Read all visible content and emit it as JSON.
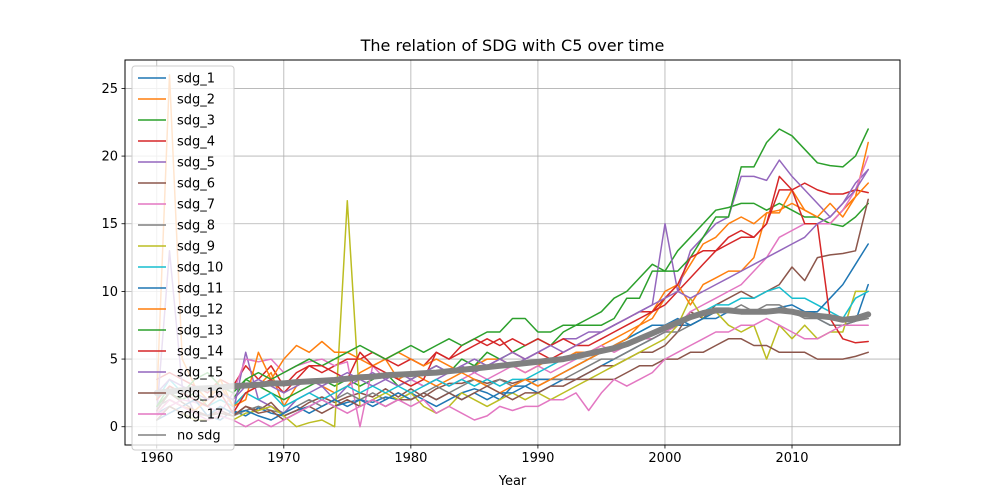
{
  "chart_data": {
    "type": "line",
    "title": "The relation of SDG with C5 over time",
    "xlabel": "Year",
    "ylabel": "",
    "xlim": [
      1957.5,
      2018.5
    ],
    "ylim": [
      -1.35,
      27.1
    ],
    "x_ticks": [
      1960,
      1970,
      1980,
      1990,
      2000,
      2010
    ],
    "y_ticks": [
      0,
      5,
      10,
      15,
      20,
      25
    ],
    "grid": true,
    "legend_position": "upper-left",
    "x": [
      1960,
      1961,
      1962,
      1963,
      1964,
      1965,
      1966,
      1967,
      1968,
      1969,
      1970,
      1971,
      1972,
      1973,
      1974,
      1975,
      1976,
      1977,
      1978,
      1979,
      1980,
      1981,
      1982,
      1983,
      1984,
      1985,
      1986,
      1987,
      1988,
      1989,
      1990,
      1991,
      1992,
      1993,
      1994,
      1995,
      1996,
      1997,
      1998,
      1999,
      2000,
      2001,
      2002,
      2003,
      2004,
      2005,
      2006,
      2007,
      2008,
      2009,
      2010,
      2011,
      2012,
      2013,
      2014,
      2015,
      2016
    ],
    "series": [
      {
        "name": "sdg_1",
        "color": "#1f77b4",
        "values": [
          1.0,
          1.5,
          1.0,
          1.2,
          0.8,
          0.5,
          1.2,
          0.8,
          1.4,
          1.0,
          0.8,
          1.2,
          1.5,
          2.0,
          1.5,
          1.8,
          2.0,
          1.8,
          2.2,
          2.0,
          2.5,
          2.0,
          1.5,
          2.0,
          2.5,
          2.8,
          2.5,
          2.0,
          3.0,
          3.0,
          2.5,
          3.0,
          3.5,
          3.5,
          4.0,
          4.5,
          5.0,
          5.5,
          6.0,
          6.5,
          7.0,
          7.5,
          7.5,
          8.0,
          8.0,
          8.5,
          8.5,
          8.5,
          8.5,
          8.8,
          9.0,
          8.5,
          8.0,
          7.5,
          7.5,
          7.8,
          10.5
        ]
      },
      {
        "name": "sdg_2",
        "color": "#ff7f0e",
        "values": [
          2.0,
          26.0,
          5.0,
          3.0,
          2.0,
          3.0,
          1.5,
          2.5,
          3.0,
          4.0,
          1.5,
          3.0,
          3.5,
          3.0,
          2.5,
          3.0,
          4.0,
          4.5,
          5.0,
          3.5,
          4.0,
          3.5,
          3.0,
          3.5,
          4.0,
          4.5,
          5.0,
          5.0,
          4.5,
          4.0,
          4.5,
          5.0,
          5.0,
          5.5,
          5.5,
          6.0,
          6.5,
          7.0,
          7.5,
          8.0,
          9.5,
          10.5,
          12.0,
          13.5,
          14.0,
          15.0,
          15.5,
          15.0,
          15.8,
          16.0,
          16.5,
          16.0,
          15.5,
          15.0,
          16.0,
          17.0,
          21.0
        ]
      },
      {
        "name": "sdg_3",
        "color": "#2ca02c",
        "values": [
          1.5,
          2.5,
          2.0,
          2.5,
          1.5,
          2.5,
          2.0,
          3.5,
          3.0,
          2.5,
          2.0,
          2.5,
          3.0,
          3.5,
          3.0,
          3.5,
          3.0,
          3.5,
          4.0,
          3.0,
          3.5,
          4.0,
          4.5,
          4.0,
          5.0,
          4.5,
          5.5,
          5.0,
          5.5,
          6.0,
          6.5,
          6.0,
          7.0,
          7.5,
          8.0,
          8.5,
          9.5,
          10.0,
          11.0,
          12.0,
          11.5,
          13.0,
          14.0,
          15.0,
          16.0,
          16.2,
          16.5,
          16.5,
          16.0,
          16.5,
          16.0,
          15.5,
          15.5,
          15.0,
          14.8,
          15.5,
          16.5
        ]
      },
      {
        "name": "sdg_4",
        "color": "#d62728",
        "values": [
          3.5,
          4.0,
          3.5,
          3.0,
          2.5,
          3.5,
          3.0,
          4.5,
          3.5,
          4.5,
          3.0,
          4.0,
          4.5,
          4.0,
          4.5,
          5.0,
          5.0,
          5.5,
          5.0,
          4.5,
          5.0,
          4.5,
          5.5,
          5.0,
          6.0,
          6.5,
          6.0,
          6.5,
          5.5,
          5.0,
          5.5,
          5.0,
          5.5,
          6.0,
          6.5,
          7.0,
          7.5,
          8.0,
          8.5,
          8.5,
          9.0,
          10.0,
          11.0,
          12.0,
          13.0,
          13.5,
          14.0,
          14.0,
          15.0,
          18.5,
          17.5,
          18.0,
          17.5,
          17.2,
          17.2,
          17.5,
          17.3
        ]
      },
      {
        "name": "sdg_5",
        "color": "#9467bd",
        "values": [
          1.0,
          13.0,
          3.0,
          1.0,
          0.8,
          1.5,
          1.0,
          5.5,
          2.0,
          1.5,
          1.0,
          2.0,
          2.5,
          3.0,
          2.0,
          3.0,
          3.5,
          3.0,
          3.5,
          3.0,
          3.5,
          3.0,
          3.5,
          4.0,
          4.5,
          4.0,
          4.5,
          5.0,
          4.5,
          5.0,
          5.5,
          6.0,
          6.5,
          6.5,
          7.0,
          7.0,
          7.5,
          8.0,
          8.5,
          9.0,
          15.0,
          10.0,
          13.0,
          14.0,
          15.0,
          15.5,
          18.5,
          18.5,
          18.2,
          19.7,
          18.5,
          17.5,
          16.5,
          15.5,
          16.5,
          18.0,
          19.0
        ]
      },
      {
        "name": "sdg_6",
        "color": "#8c564b",
        "values": [
          1.2,
          2.5,
          1.8,
          1.2,
          0.8,
          1.2,
          0.8,
          1.5,
          1.2,
          1.8,
          0.8,
          1.2,
          1.8,
          2.2,
          1.8,
          2.2,
          2.5,
          2.2,
          2.8,
          2.2,
          2.8,
          2.2,
          2.8,
          3.2,
          3.2,
          3.5,
          3.2,
          3.5,
          3.2,
          3.5,
          3.5,
          3.5,
          3.5,
          3.5,
          4.0,
          4.5,
          4.5,
          5.0,
          5.5,
          5.5,
          6.0,
          7.0,
          8.5,
          8.0,
          9.0,
          9.5,
          10.0,
          9.5,
          10.0,
          10.5,
          11.8,
          10.8,
          12.5,
          12.7,
          12.8,
          13.0,
          16.8
        ]
      },
      {
        "name": "sdg_7",
        "color": "#e377c2",
        "values": [
          0.8,
          1.5,
          2.0,
          1.8,
          1.5,
          1.0,
          2.5,
          5.0,
          4.8,
          5.0,
          4.0,
          4.5,
          4.8,
          5.0,
          4.5,
          4.8,
          0.0,
          4.5,
          3.5,
          4.0,
          3.5,
          3.0,
          3.5,
          3.0,
          3.5,
          4.0,
          3.5,
          4.0,
          4.5,
          4.0,
          4.5,
          4.0,
          4.5,
          5.0,
          5.5,
          6.0,
          5.5,
          6.0,
          6.5,
          6.5,
          7.0,
          7.5,
          8.5,
          9.0,
          9.5,
          10.0,
          10.5,
          11.5,
          12.5,
          14.0,
          14.5,
          15.0,
          15.0,
          15.0,
          16.0,
          17.5,
          20.0
        ]
      },
      {
        "name": "sdg_8",
        "color": "#7f7f7f",
        "values": [
          1.5,
          2.0,
          1.5,
          1.0,
          0.8,
          1.0,
          0.8,
          1.2,
          1.5,
          1.2,
          1.0,
          1.5,
          2.0,
          1.5,
          2.0,
          2.5,
          2.0,
          2.5,
          2.0,
          2.5,
          2.0,
          2.5,
          3.0,
          2.5,
          3.0,
          3.5,
          3.0,
          3.5,
          3.0,
          3.5,
          3.0,
          3.5,
          3.5,
          4.0,
          4.5,
          5.0,
          5.0,
          5.5,
          6.0,
          6.5,
          7.0,
          7.0,
          7.5,
          8.0,
          8.5,
          8.5,
          9.0,
          8.5,
          9.0,
          9.0,
          8.5,
          8.0,
          8.0,
          7.5,
          7.5,
          7.8,
          8.0
        ]
      },
      {
        "name": "sdg_9",
        "color": "#bcbd22",
        "values": [
          0.5,
          1.5,
          1.0,
          0.5,
          0.5,
          0.8,
          0.5,
          1.0,
          1.2,
          1.5,
          0.8,
          0.0,
          0.3,
          0.5,
          0.0,
          16.7,
          1.5,
          2.0,
          2.5,
          2.0,
          2.5,
          1.5,
          1.0,
          1.5,
          2.5,
          2.0,
          1.5,
          2.0,
          2.5,
          2.0,
          2.5,
          2.0,
          2.5,
          3.0,
          3.5,
          4.0,
          4.5,
          5.0,
          5.5,
          6.0,
          6.5,
          7.5,
          9.5,
          8.0,
          8.5,
          7.5,
          7.0,
          7.5,
          5.0,
          7.5,
          6.5,
          7.5,
          6.5,
          7.0,
          7.0,
          10.0,
          10.0
        ]
      },
      {
        "name": "sdg_10",
        "color": "#17becf",
        "values": [
          2.0,
          3.5,
          2.5,
          2.0,
          1.5,
          2.0,
          1.5,
          2.5,
          2.0,
          2.5,
          1.5,
          2.0,
          2.5,
          2.0,
          2.5,
          3.0,
          2.5,
          3.0,
          2.5,
          3.0,
          2.5,
          3.0,
          3.5,
          3.0,
          3.5,
          3.0,
          3.5,
          3.0,
          3.5,
          3.5,
          4.0,
          4.5,
          5.0,
          5.0,
          5.5,
          5.5,
          6.0,
          6.5,
          7.0,
          7.5,
          7.5,
          7.5,
          8.0,
          8.5,
          9.0,
          9.0,
          9.5,
          9.5,
          10.0,
          10.3,
          9.5,
          9.5,
          9.0,
          8.5,
          8.0,
          9.5,
          10.0
        ]
      },
      {
        "name": "sdg_11",
        "color": "#1f77b4",
        "values": [
          0.5,
          1.0,
          1.5,
          2.0,
          0.8,
          1.5,
          1.0,
          1.2,
          0.8,
          0.5,
          1.0,
          1.5,
          1.0,
          1.5,
          2.0,
          1.5,
          2.0,
          1.5,
          2.0,
          2.5,
          2.0,
          2.5,
          2.0,
          2.5,
          2.0,
          2.5,
          2.0,
          2.5,
          2.5,
          3.0,
          3.5,
          3.5,
          4.0,
          4.5,
          5.0,
          5.5,
          6.0,
          6.5,
          7.0,
          7.5,
          7.5,
          8.0,
          7.5,
          8.0,
          8.5,
          8.5,
          8.5,
          8.5,
          8.5,
          8.5,
          8.5,
          8.5,
          8.5,
          9.5,
          10.5,
          12.0,
          13.5
        ]
      },
      {
        "name": "sdg_12",
        "color": "#ff7f0e",
        "values": [
          1.0,
          2.0,
          1.5,
          1.2,
          2.0,
          3.5,
          1.5,
          2.0,
          5.5,
          3.5,
          5.0,
          6.0,
          5.5,
          6.3,
          5.5,
          5.5,
          5.0,
          4.5,
          5.0,
          5.5,
          5.0,
          4.5,
          5.0,
          4.5,
          4.0,
          3.5,
          3.0,
          2.5,
          3.0,
          3.5,
          3.0,
          3.5,
          4.0,
          4.5,
          5.0,
          5.5,
          6.0,
          6.5,
          7.5,
          8.5,
          10.0,
          10.5,
          9.0,
          10.5,
          11.0,
          11.5,
          11.5,
          12.5,
          15.8,
          15.8,
          17.5,
          16.0,
          15.5,
          16.5,
          15.5,
          17.0,
          18.0
        ]
      },
      {
        "name": "sdg_13",
        "color": "#2ca02c",
        "values": [
          1.5,
          3.0,
          2.5,
          3.5,
          4.0,
          3.0,
          2.5,
          3.5,
          4.0,
          3.5,
          4.0,
          4.5,
          5.0,
          4.5,
          5.0,
          5.5,
          6.0,
          5.5,
          5.0,
          5.5,
          6.0,
          5.5,
          6.0,
          6.5,
          6.0,
          6.5,
          7.0,
          7.0,
          8.0,
          8.0,
          7.0,
          7.0,
          7.5,
          7.5,
          7.5,
          7.5,
          8.0,
          9.5,
          9.5,
          11.5,
          11.5,
          11.5,
          12.5,
          14.0,
          15.5,
          15.5,
          19.2,
          19.2,
          21.0,
          22.0,
          21.5,
          20.5,
          19.5,
          19.3,
          19.2,
          20.0,
          22.0
        ]
      },
      {
        "name": "sdg_14",
        "color": "#d62728",
        "values": [
          2.0,
          3.0,
          2.5,
          2.0,
          1.5,
          2.5,
          1.0,
          2.5,
          3.0,
          3.5,
          2.5,
          3.5,
          4.5,
          4.5,
          4.0,
          3.5,
          5.5,
          4.5,
          4.0,
          3.5,
          3.0,
          3.5,
          5.5,
          5.0,
          5.5,
          6.0,
          6.5,
          6.0,
          6.5,
          6.0,
          6.5,
          6.0,
          6.5,
          6.0,
          6.0,
          6.5,
          7.0,
          7.5,
          8.0,
          8.5,
          9.5,
          10.5,
          12.5,
          13.0,
          13.0,
          14.0,
          14.5,
          14.0,
          15.0,
          17.5,
          17.5,
          15.0,
          15.0,
          8.0,
          6.5,
          6.2,
          6.3
        ]
      },
      {
        "name": "sdg_15",
        "color": "#9467bd",
        "values": [
          2.5,
          3.5,
          3.0,
          2.5,
          2.0,
          2.5,
          2.0,
          3.0,
          3.5,
          3.0,
          2.5,
          3.0,
          3.5,
          3.0,
          3.5,
          4.0,
          3.5,
          4.0,
          3.5,
          4.0,
          3.5,
          4.0,
          4.5,
          4.0,
          4.5,
          5.0,
          4.5,
          5.0,
          5.5,
          5.0,
          5.5,
          6.0,
          5.5,
          6.0,
          6.5,
          7.0,
          7.5,
          8.0,
          8.5,
          9.0,
          9.5,
          10.0,
          9.5,
          10.0,
          10.5,
          11.0,
          11.5,
          12.0,
          12.5,
          13.0,
          13.5,
          14.0,
          15.0,
          15.5,
          16.5,
          17.5,
          19.0
        ]
      },
      {
        "name": "sdg_16",
        "color": "#8c564b",
        "values": [
          0.5,
          1.5,
          1.0,
          1.2,
          0.8,
          1.0,
          0.8,
          1.5,
          1.0,
          1.2,
          0.5,
          1.0,
          1.5,
          1.0,
          1.5,
          2.0,
          1.5,
          2.0,
          1.5,
          2.0,
          2.0,
          2.5,
          2.0,
          2.5,
          2.0,
          2.5,
          3.0,
          2.5,
          2.0,
          2.5,
          2.5,
          3.0,
          3.0,
          3.5,
          3.5,
          3.5,
          3.5,
          4.0,
          4.5,
          4.5,
          5.0,
          5.0,
          5.5,
          5.5,
          6.0,
          6.5,
          6.5,
          6.0,
          6.0,
          5.5,
          5.5,
          5.5,
          5.0,
          5.0,
          5.0,
          5.2,
          5.5
        ]
      },
      {
        "name": "sdg_17",
        "color": "#e377c2",
        "values": [
          1.0,
          2.0,
          1.5,
          1.0,
          0.5,
          0.8,
          0.5,
          0.0,
          0.5,
          0.0,
          0.5,
          1.0,
          1.5,
          2.0,
          1.5,
          1.0,
          1.5,
          2.0,
          1.5,
          2.0,
          1.5,
          2.0,
          1.0,
          1.5,
          1.0,
          0.5,
          0.8,
          1.5,
          1.2,
          1.5,
          1.5,
          2.0,
          2.0,
          2.5,
          1.2,
          2.5,
          3.5,
          3.0,
          3.5,
          4.0,
          5.0,
          5.5,
          6.0,
          6.5,
          7.0,
          7.0,
          7.5,
          7.5,
          8.0,
          7.5,
          7.0,
          6.5,
          6.5,
          7.0,
          7.5,
          7.5,
          7.5
        ]
      },
      {
        "name": "no sdg",
        "color": "#808080",
        "values": [
          2.5,
          2.6,
          2.7,
          2.8,
          2.85,
          2.9,
          3.0,
          3.05,
          3.1,
          3.2,
          3.2,
          3.3,
          3.35,
          3.4,
          3.45,
          3.55,
          3.65,
          3.7,
          3.8,
          3.85,
          3.9,
          3.95,
          4.0,
          4.1,
          4.2,
          4.3,
          4.4,
          4.5,
          4.6,
          4.7,
          4.8,
          4.9,
          5.0,
          5.2,
          5.4,
          5.6,
          5.8,
          6.1,
          6.5,
          6.9,
          7.3,
          7.7,
          8.1,
          8.4,
          8.6,
          8.6,
          8.5,
          8.5,
          8.5,
          8.6,
          8.5,
          8.3,
          8.2,
          8.1,
          7.9,
          8.0,
          8.3
        ]
      }
    ]
  }
}
